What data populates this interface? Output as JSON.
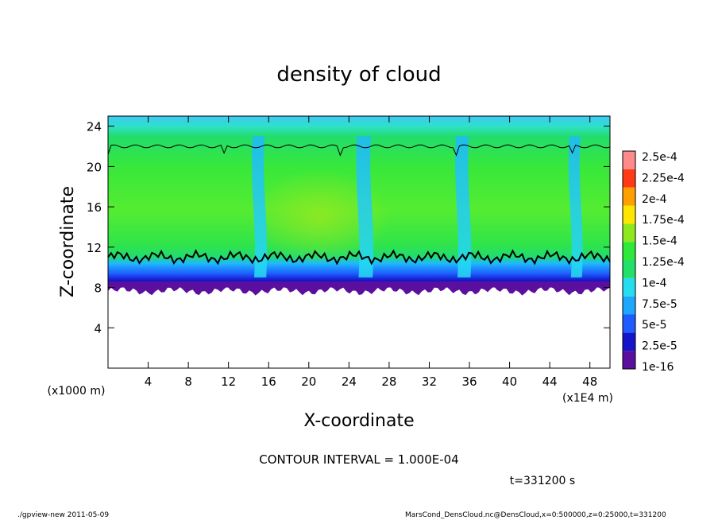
{
  "chart_data": {
    "type": "heatmap",
    "title": "density of cloud",
    "xlabel": "X-coordinate",
    "ylabel": "Z-coordinate",
    "x_unit_label": "(x1E4 m)",
    "y_unit_label": "(x1000 m)",
    "xlim": [
      0,
      50
    ],
    "ylim": [
      0,
      25
    ],
    "xticks": [
      "4",
      "8",
      "12",
      "16",
      "20",
      "24",
      "28",
      "32",
      "36",
      "40",
      "44",
      "48"
    ],
    "yticks": [
      "4",
      "8",
      "12",
      "16",
      "20",
      "24"
    ],
    "contour_interval_label": "CONTOUR INTERVAL = 1.000E-04",
    "time_label": "t=331200 s",
    "colorbar": {
      "labels": [
        "1e-16",
        "2.5e-5",
        "5e-5",
        "7.5e-5",
        "1e-4",
        "1.25e-4",
        "1.5e-4",
        "1.75e-4",
        "2e-4",
        "2.25e-4",
        "2.5e-4"
      ],
      "colors": [
        "#5b0f9e",
        "#1414c8",
        "#1e5cff",
        "#1fa6ff",
        "#26ddf0",
        "#22e06a",
        "#2ee83a",
        "#8fe81e",
        "#ffe600",
        "#ffa000",
        "#ff3a14",
        "#ff8a8a"
      ]
    },
    "field": {
      "cloud_base_km": 8,
      "cloud_top_km": 22,
      "mid_value": 0.000125,
      "low_value": 2.5e-05
    }
  },
  "footer": {
    "left": "./gpview-new   2011-05-09",
    "right": "MarsCond_DensCloud.nc@DensCloud,x=0:500000,z=0:25000,t=331200"
  }
}
